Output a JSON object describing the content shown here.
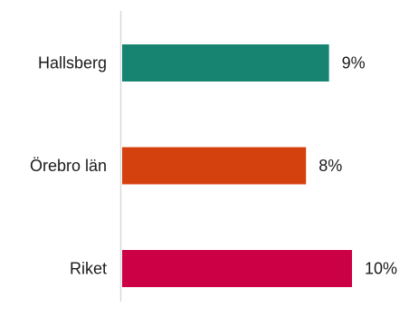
{
  "chart_data": {
    "type": "bar",
    "orientation": "horizontal",
    "categories": [
      "Hallsberg",
      "Örebro län",
      "Riket"
    ],
    "values": [
      9,
      8,
      10
    ],
    "value_labels": [
      "9%",
      "8%",
      "10%"
    ],
    "unit": "%",
    "xlim": [
      0,
      10.8
    ],
    "grid": false,
    "legend": "none",
    "colors": [
      "#168470",
      "#d5410e",
      "#cc0044"
    ],
    "axis_color": "#d9d9d9"
  }
}
